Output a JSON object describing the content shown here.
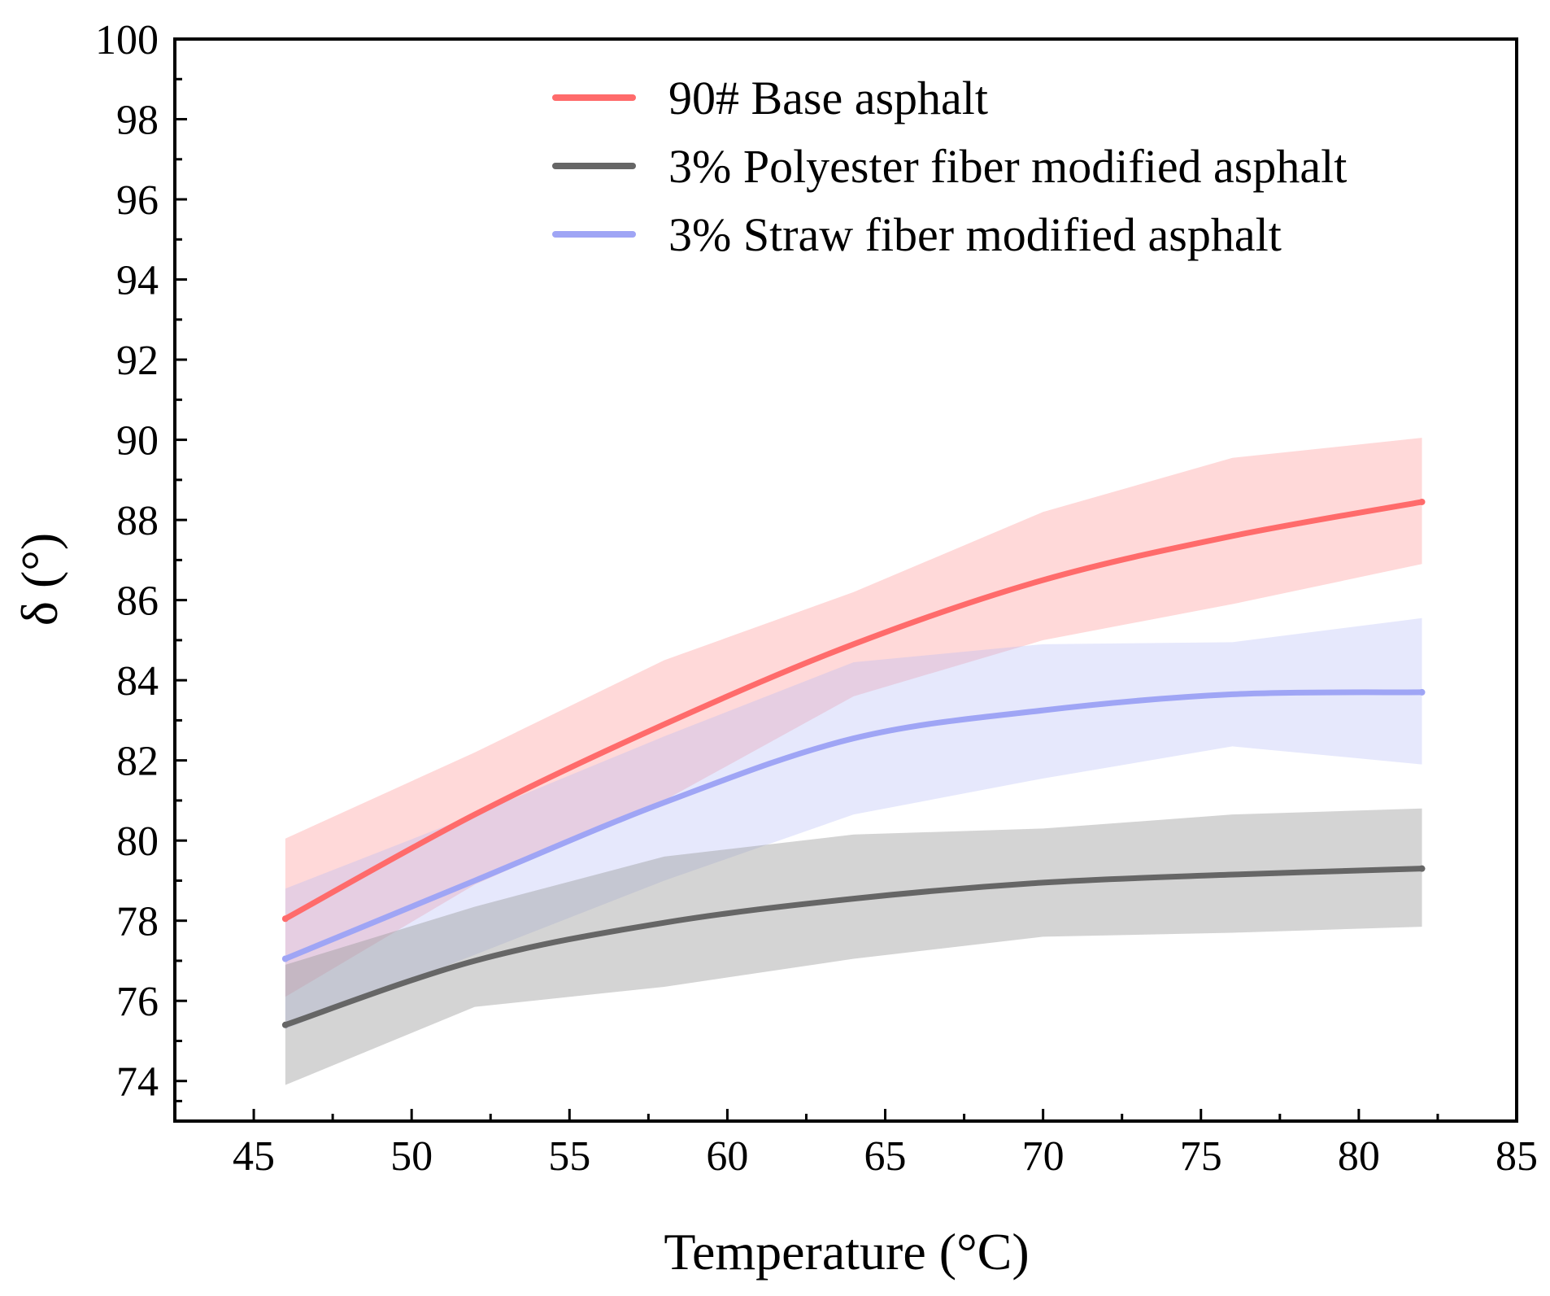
{
  "chart_data": {
    "type": "line",
    "title": "",
    "xlabel": "Temperature (°C)",
    "ylabel": "δ (°)",
    "xlim": [
      42.5,
      85
    ],
    "ylim": [
      73,
      100
    ],
    "xticks": [
      45,
      50,
      55,
      60,
      65,
      70,
      75,
      80,
      85
    ],
    "yticks": [
      74,
      76,
      78,
      80,
      82,
      84,
      86,
      88,
      90,
      92,
      94,
      96,
      98,
      100
    ],
    "legend_position": "top-right",
    "series": [
      {
        "name": "90# Base asphalt",
        "color": "#ff6b6b",
        "band_color": "#ff8c8c",
        "x": [
          46,
          52,
          58,
          64,
          70,
          76,
          82
        ],
        "y": [
          78.05,
          80.65,
          82.9,
          84.9,
          86.5,
          87.6,
          88.45
        ],
        "y_lower": [
          76.1,
          78.9,
          81.0,
          83.6,
          85.0,
          85.9,
          86.9
        ],
        "y_upper": [
          80.05,
          82.2,
          84.5,
          86.2,
          88.2,
          89.55,
          90.05
        ]
      },
      {
        "name": "3% Polyester fiber modified asphalt",
        "color": "#666666",
        "band_color": "#999999",
        "x": [
          46,
          52,
          58,
          64,
          70,
          76,
          82
        ],
        "y": [
          75.4,
          77.0,
          77.95,
          78.55,
          78.95,
          79.15,
          79.3
        ],
        "y_lower": [
          73.9,
          75.85,
          76.35,
          77.05,
          77.6,
          77.7,
          77.85
        ],
        "y_upper": [
          76.9,
          78.35,
          79.6,
          80.15,
          80.3,
          80.65,
          80.8
        ]
      },
      {
        "name": "3% Straw fiber modified asphalt",
        "color": "#9fa5f5",
        "band_color": "#b4baf7",
        "x": [
          46,
          52,
          58,
          64,
          70,
          76,
          82
        ],
        "y": [
          77.05,
          79.0,
          80.95,
          82.55,
          83.25,
          83.65,
          83.7
        ],
        "y_lower": [
          75.3,
          77.15,
          79.0,
          80.65,
          81.55,
          82.35,
          81.9
        ],
        "y_upper": [
          78.8,
          80.65,
          82.6,
          84.45,
          84.9,
          84.95,
          85.55
        ]
      }
    ]
  }
}
